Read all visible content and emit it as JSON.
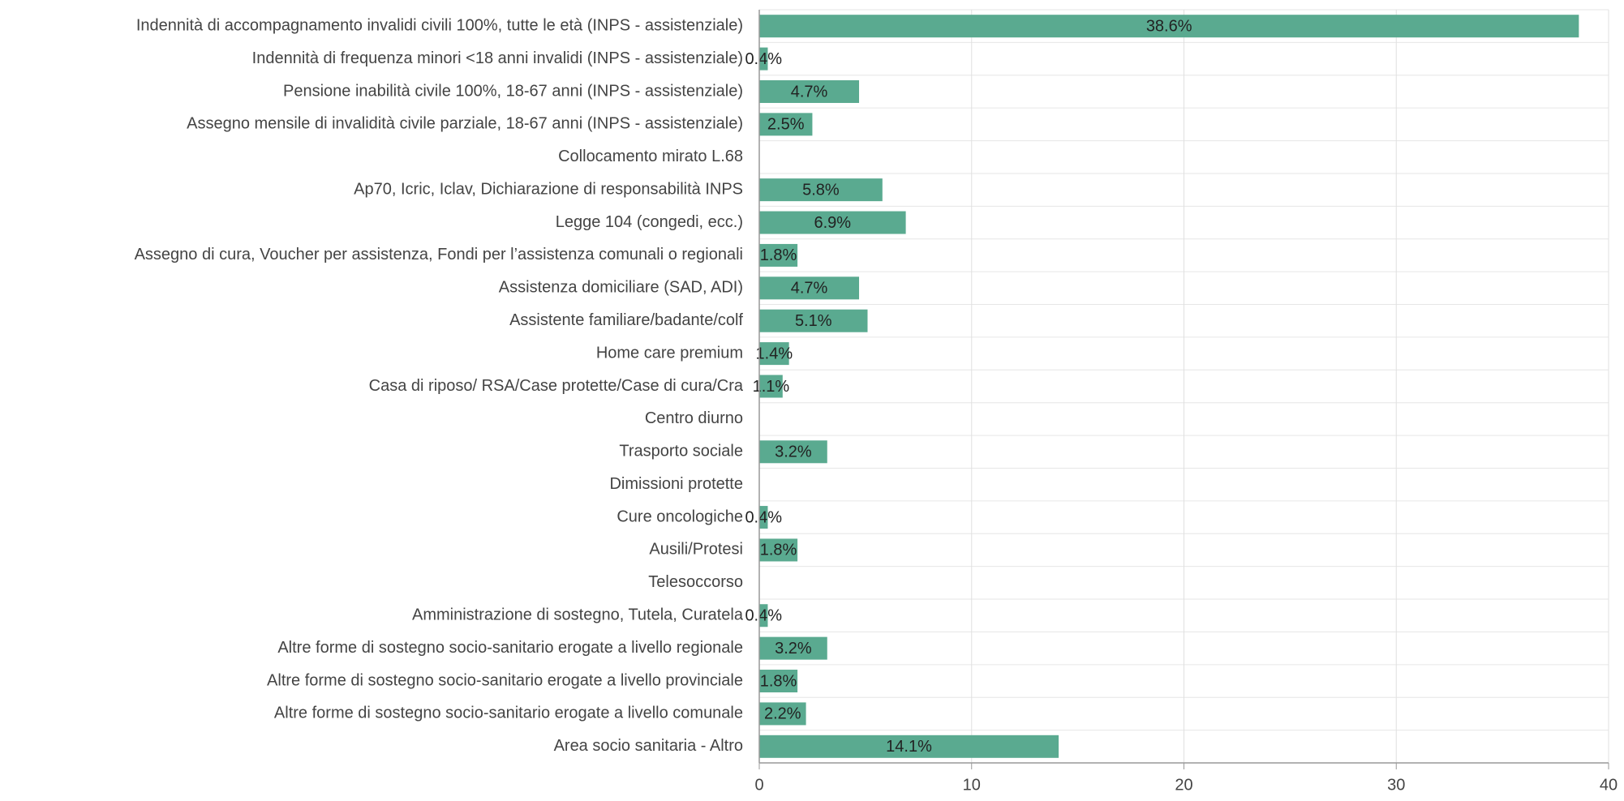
{
  "chart_data": {
    "type": "hbar",
    "categories": [
      "Indennità di accompagnamento invalidi civili 100%, tutte le età (INPS - assistenziale)",
      "Indennità di frequenza minori <18 anni invalidi (INPS - assistenziale)",
      "Pensione inabilità civile 100%, 18-67 anni (INPS - assistenziale)",
      "Assegno mensile di invalidità civile parziale, 18-67 anni (INPS - assistenziale)",
      "Collocamento mirato L.68",
      "Ap70, Icric, Iclav, Dichiarazione di responsabilità INPS",
      "Legge 104 (congedi, ecc.)",
      "Assegno di cura, Voucher per assistenza, Fondi per l’assistenza comunali o regionali",
      "Assistenza domiciliare (SAD, ADI)",
      "Assistente familiare/badante/colf",
      "Home care premium",
      "Casa di riposo/ RSA/Case protette/Case di cura/Cra",
      "Centro diurno",
      "Trasporto sociale",
      "Dimissioni protette",
      "Cure oncologiche",
      "Ausili/Protesi",
      "Telesoccorso",
      "Amministrazione di sostegno, Tutela, Curatela",
      "Altre forme di sostegno socio-sanitario erogate a livello regionale",
      "Altre forme di sostegno socio-sanitario erogate a livello provinciale",
      "Altre forme di sostegno socio-sanitario erogate a livello comunale",
      "Area socio sanitaria - Altro"
    ],
    "values": [
      38.6,
      0.4,
      4.7,
      2.5,
      0,
      5.8,
      6.9,
      1.8,
      4.7,
      5.1,
      1.4,
      1.1,
      0,
      3.2,
      0,
      0.4,
      1.8,
      0,
      0.4,
      3.2,
      1.8,
      2.2,
      14.1
    ],
    "value_labels": [
      "38.6%",
      "0.4%",
      "4.7%",
      "2.5%",
      null,
      "5.8%",
      "6.9%",
      "1.8%",
      "4.7%",
      "5.1%",
      "1.4%",
      "1.1%",
      null,
      "3.2%",
      null,
      "0.4%",
      "1.8%",
      null,
      "0.4%",
      "3.2%",
      "1.8%",
      "2.2%",
      "14.1%"
    ],
    "color": "#5aaa90",
    "xlim": [
      0,
      40
    ],
    "xticks": [
      0,
      10,
      20,
      30,
      40
    ],
    "grid": true
  }
}
